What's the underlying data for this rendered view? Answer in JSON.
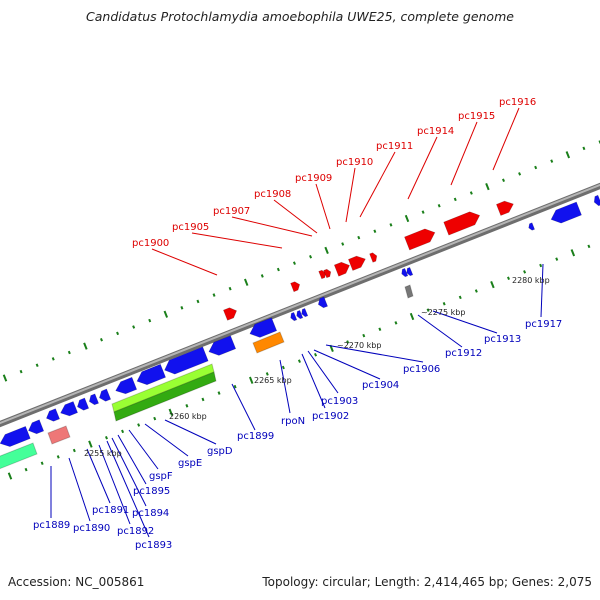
{
  "title": "Candidatus Protochlamydia amoebophila UWE25, complete genome",
  "footer": {
    "accession": "Accession: NC_005861",
    "summary": "Topology: circular; Length: 2,414,465 bp; Genes: 2,075"
  },
  "colors": {
    "forward_label": "#dd0000",
    "reverse_label": "#0000bb",
    "forward_gene": "#ee0000",
    "reverse_gene": "#1111ee",
    "backbone": "#8c8c8c",
    "tick": "#1a7f1a",
    "rna_gene": "#ff8800",
    "pseudo_gene": "#ee7777",
    "other_gene": "#44ff99",
    "gsp_cluster": "#33aa11"
  },
  "ruler": {
    "marks": [
      "2255 kbp",
      "2260 kbp",
      "2265 kbp",
      "~2270 kbp",
      "~2275 kbp",
      "2280 kbp"
    ]
  },
  "labels": {
    "forward": [
      "pc1900",
      "pc1905",
      "pc1907",
      "pc1908",
      "pc1909",
      "pc1910",
      "pc1911",
      "pc1914",
      "pc1915",
      "pc1916"
    ],
    "reverse": [
      "pc1889",
      "pc1890",
      "pc1891",
      "pc1892",
      "pc1893",
      "pc1894",
      "pc1895",
      "gspF",
      "gspE",
      "gspD",
      "pc1899",
      "rpoN",
      "pc1902",
      "pc1903",
      "pc1904",
      "pc1906",
      "pc1912",
      "pc1913",
      "pc1917"
    ]
  }
}
